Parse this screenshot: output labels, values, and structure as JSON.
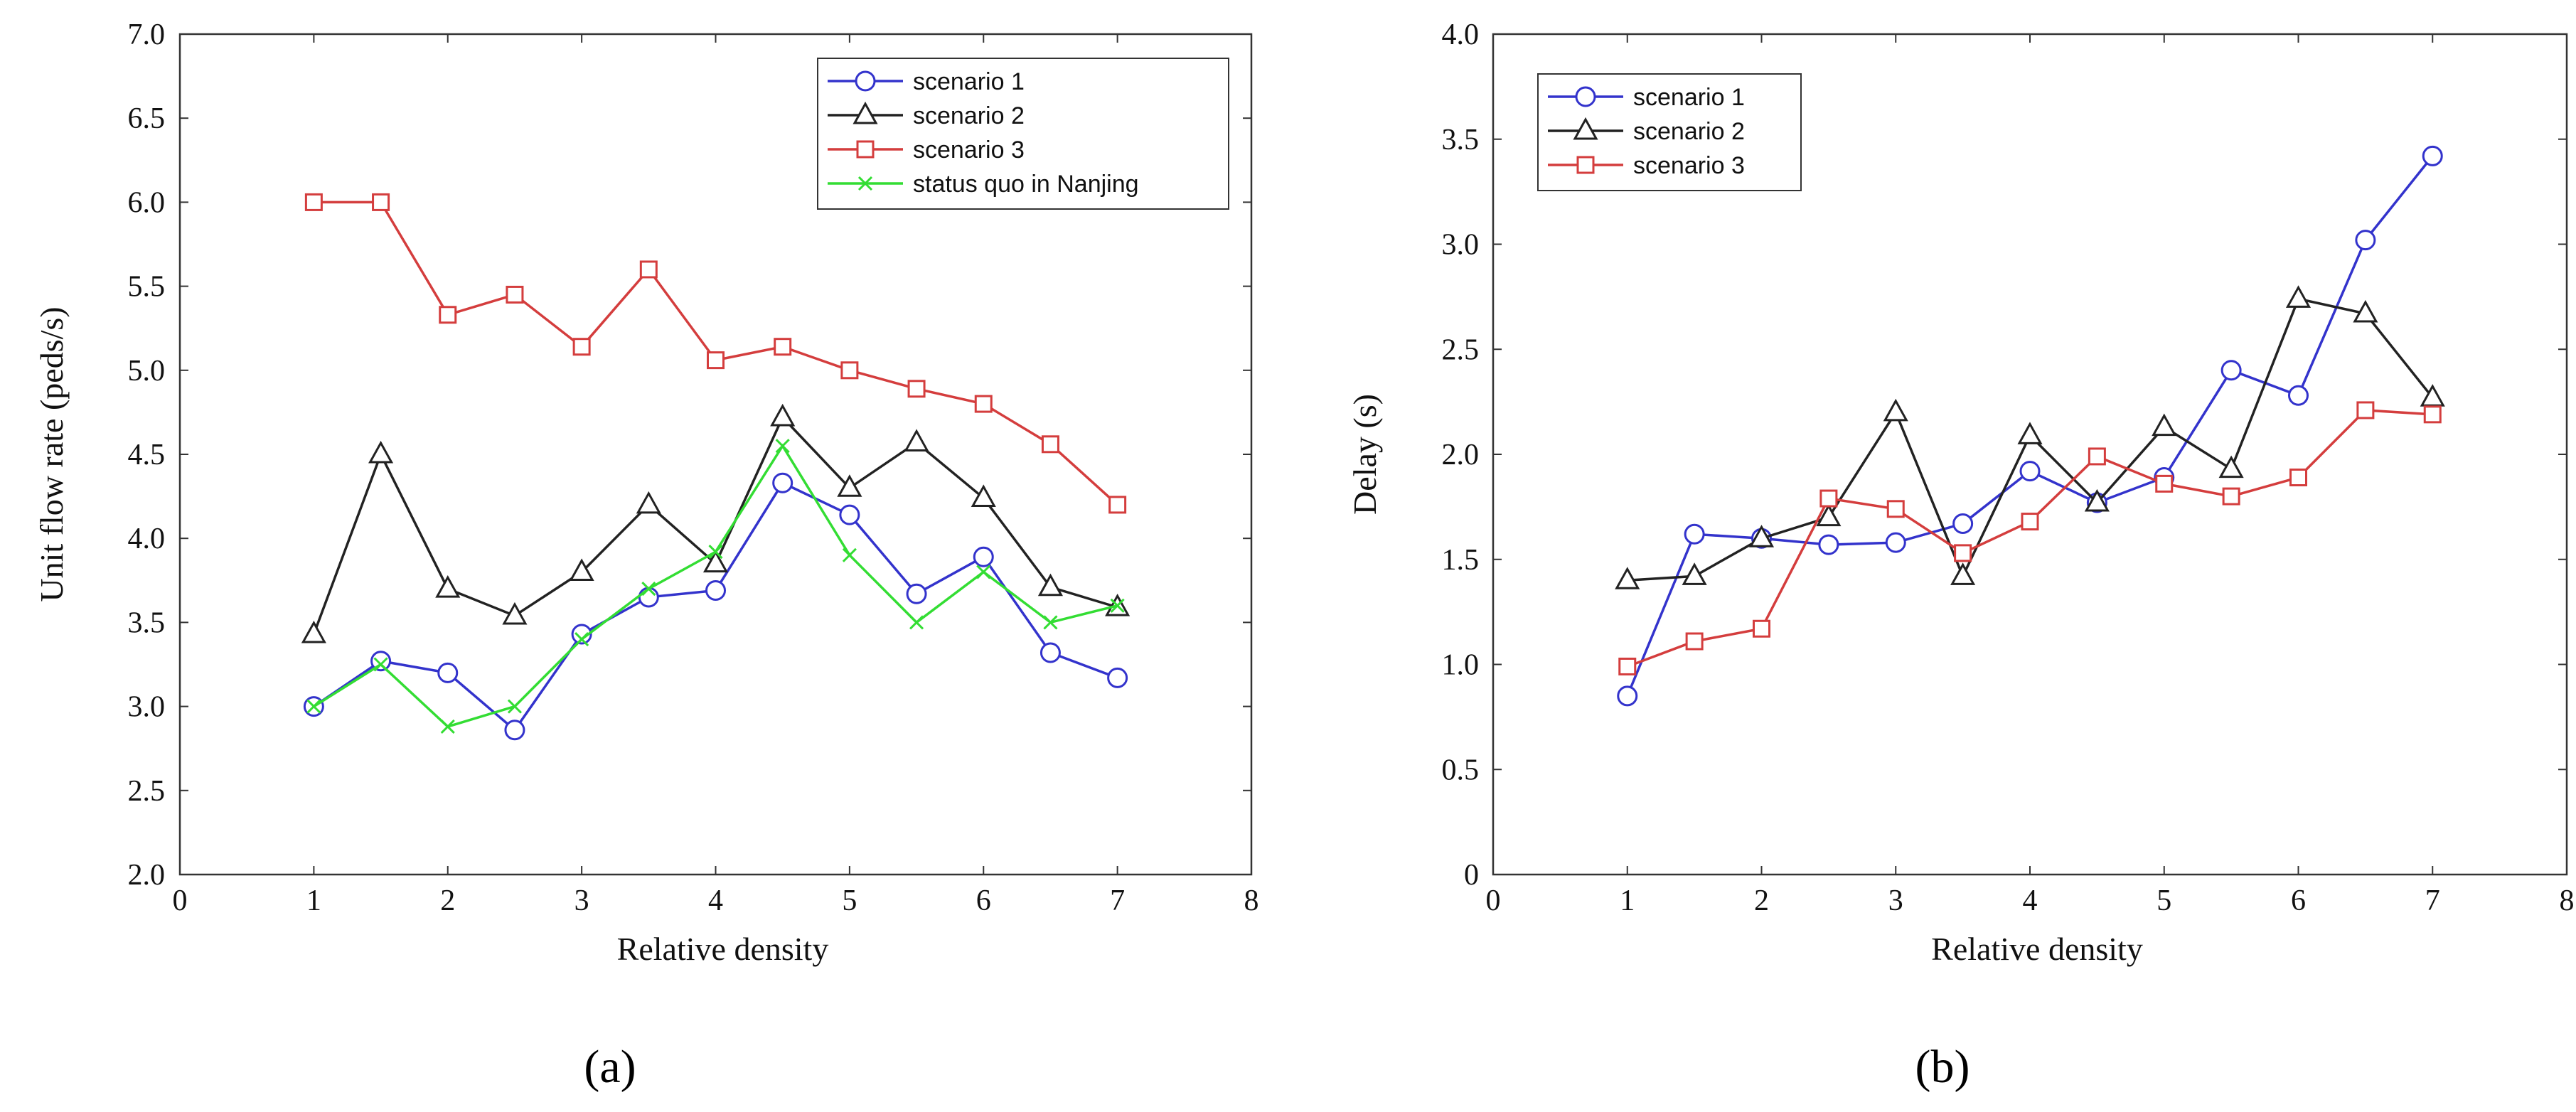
{
  "figure": {
    "panels": [
      {
        "label": "(a)"
      },
      {
        "label": "(b)"
      }
    ]
  },
  "colors": {
    "scenario1": "#3333cc",
    "scenario2": "#222222",
    "scenario3": "#d43d3d",
    "statusquo": "#33dd33",
    "axis": "#333333"
  },
  "chart_data": [
    {
      "type": "line",
      "panel": "(a)",
      "title": "",
      "xlabel": "Relative density",
      "ylabel": "Unit flow rate (peds/s)",
      "xlim": [
        0,
        8
      ],
      "ylim": [
        2.0,
        7.0
      ],
      "xticks": [
        "0",
        "1",
        "2",
        "3",
        "4",
        "5",
        "6",
        "7",
        "8"
      ],
      "yticks": [
        "2.0",
        "2.5",
        "3.0",
        "3.5",
        "4.0",
        "4.5",
        "5.0",
        "5.5",
        "6.0",
        "6.5",
        "7.0"
      ],
      "legend_position": "top-right",
      "x": [
        1,
        1.5,
        2,
        2.5,
        3,
        3.5,
        4,
        4.5,
        5,
        5.5,
        6,
        6.5,
        7
      ],
      "series": [
        {
          "name": "scenario 1",
          "marker": "circle",
          "color": "#3333cc",
          "values": [
            3.0,
            3.27,
            3.2,
            2.86,
            3.43,
            3.65,
            3.69,
            4.33,
            4.14,
            3.67,
            3.89,
            3.32,
            3.17
          ]
        },
        {
          "name": "scenario 2",
          "marker": "triangle",
          "color": "#222222",
          "values": [
            3.43,
            4.5,
            3.7,
            3.54,
            3.8,
            4.2,
            3.85,
            4.72,
            4.3,
            4.57,
            4.24,
            3.71,
            3.59
          ]
        },
        {
          "name": "scenario 3",
          "marker": "square",
          "color": "#d43d3d",
          "values": [
            6.0,
            6.0,
            5.33,
            5.45,
            5.14,
            5.6,
            5.06,
            5.14,
            5.0,
            4.89,
            4.8,
            4.56,
            4.2
          ]
        },
        {
          "name": "status quo in Nanjing",
          "marker": "x",
          "color": "#33dd33",
          "values": [
            3.0,
            3.25,
            2.88,
            3.0,
            3.4,
            3.7,
            3.92,
            4.55,
            3.9,
            3.5,
            3.8,
            3.5,
            3.6
          ]
        }
      ]
    },
    {
      "type": "line",
      "panel": "(b)",
      "title": "",
      "xlabel": "Relative density",
      "ylabel": "Delay (s)",
      "xlim": [
        0,
        8
      ],
      "ylim": [
        0,
        4.0
      ],
      "xticks": [
        "0",
        "1",
        "2",
        "3",
        "4",
        "5",
        "6",
        "7",
        "8"
      ],
      "yticks": [
        "0",
        "0.5",
        "1.0",
        "1.5",
        "2.0",
        "2.5",
        "3.0",
        "3.5",
        "4.0"
      ],
      "legend_position": "top-left",
      "x": [
        1,
        1.5,
        2,
        2.5,
        3,
        3.5,
        4,
        4.5,
        5,
        5.5,
        6,
        6.5,
        7
      ],
      "series": [
        {
          "name": "scenario 1",
          "marker": "circle",
          "color": "#3333cc",
          "values": [
            0.85,
            1.62,
            1.6,
            1.57,
            1.58,
            1.67,
            1.92,
            1.77,
            1.89,
            2.4,
            2.28,
            3.02,
            3.42
          ]
        },
        {
          "name": "scenario 2",
          "marker": "triangle",
          "color": "#222222",
          "values": [
            1.4,
            1.42,
            1.6,
            1.7,
            2.2,
            1.42,
            2.09,
            1.77,
            2.13,
            1.93,
            2.74,
            2.67,
            2.27
          ]
        },
        {
          "name": "scenario 3",
          "marker": "square",
          "color": "#d43d3d",
          "values": [
            0.99,
            1.11,
            1.17,
            1.79,
            1.74,
            1.53,
            1.68,
            1.99,
            1.86,
            1.8,
            1.89,
            2.21,
            2.19
          ]
        }
      ]
    }
  ]
}
